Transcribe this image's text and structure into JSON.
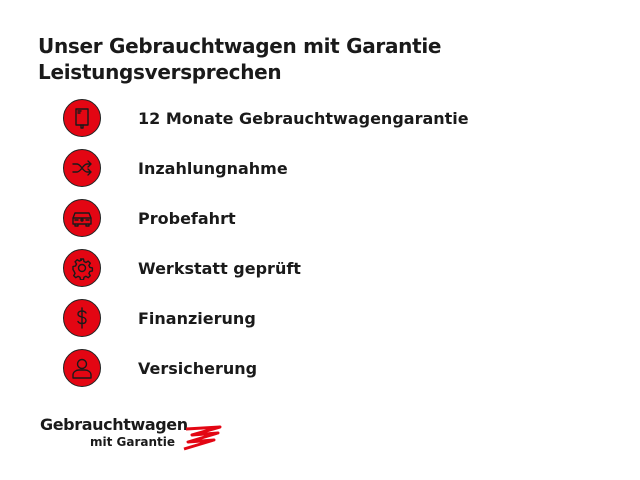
{
  "heading": {
    "line1": "Unser Gebrauchtwagen mit Garantie",
    "line2": "Leistungsversprechen"
  },
  "items": [
    {
      "label": "12 Monate Gebrauchtwagengarantie",
      "icon": "book-icon"
    },
    {
      "label": "Inzahlungnahme",
      "icon": "shuffle-icon"
    },
    {
      "label": "Probefahrt",
      "icon": "car-icon"
    },
    {
      "label": "Werkstatt geprüft",
      "icon": "gear-icon"
    },
    {
      "label": "Finanzierung",
      "icon": "dollar-icon"
    },
    {
      "label": "Versicherung",
      "icon": "person-icon"
    }
  ],
  "logo": {
    "line1": "Gebrauchtwagen",
    "line2": "mit Garantie"
  },
  "colors": {
    "accent": "#e30613",
    "text": "#1a1a1a"
  }
}
